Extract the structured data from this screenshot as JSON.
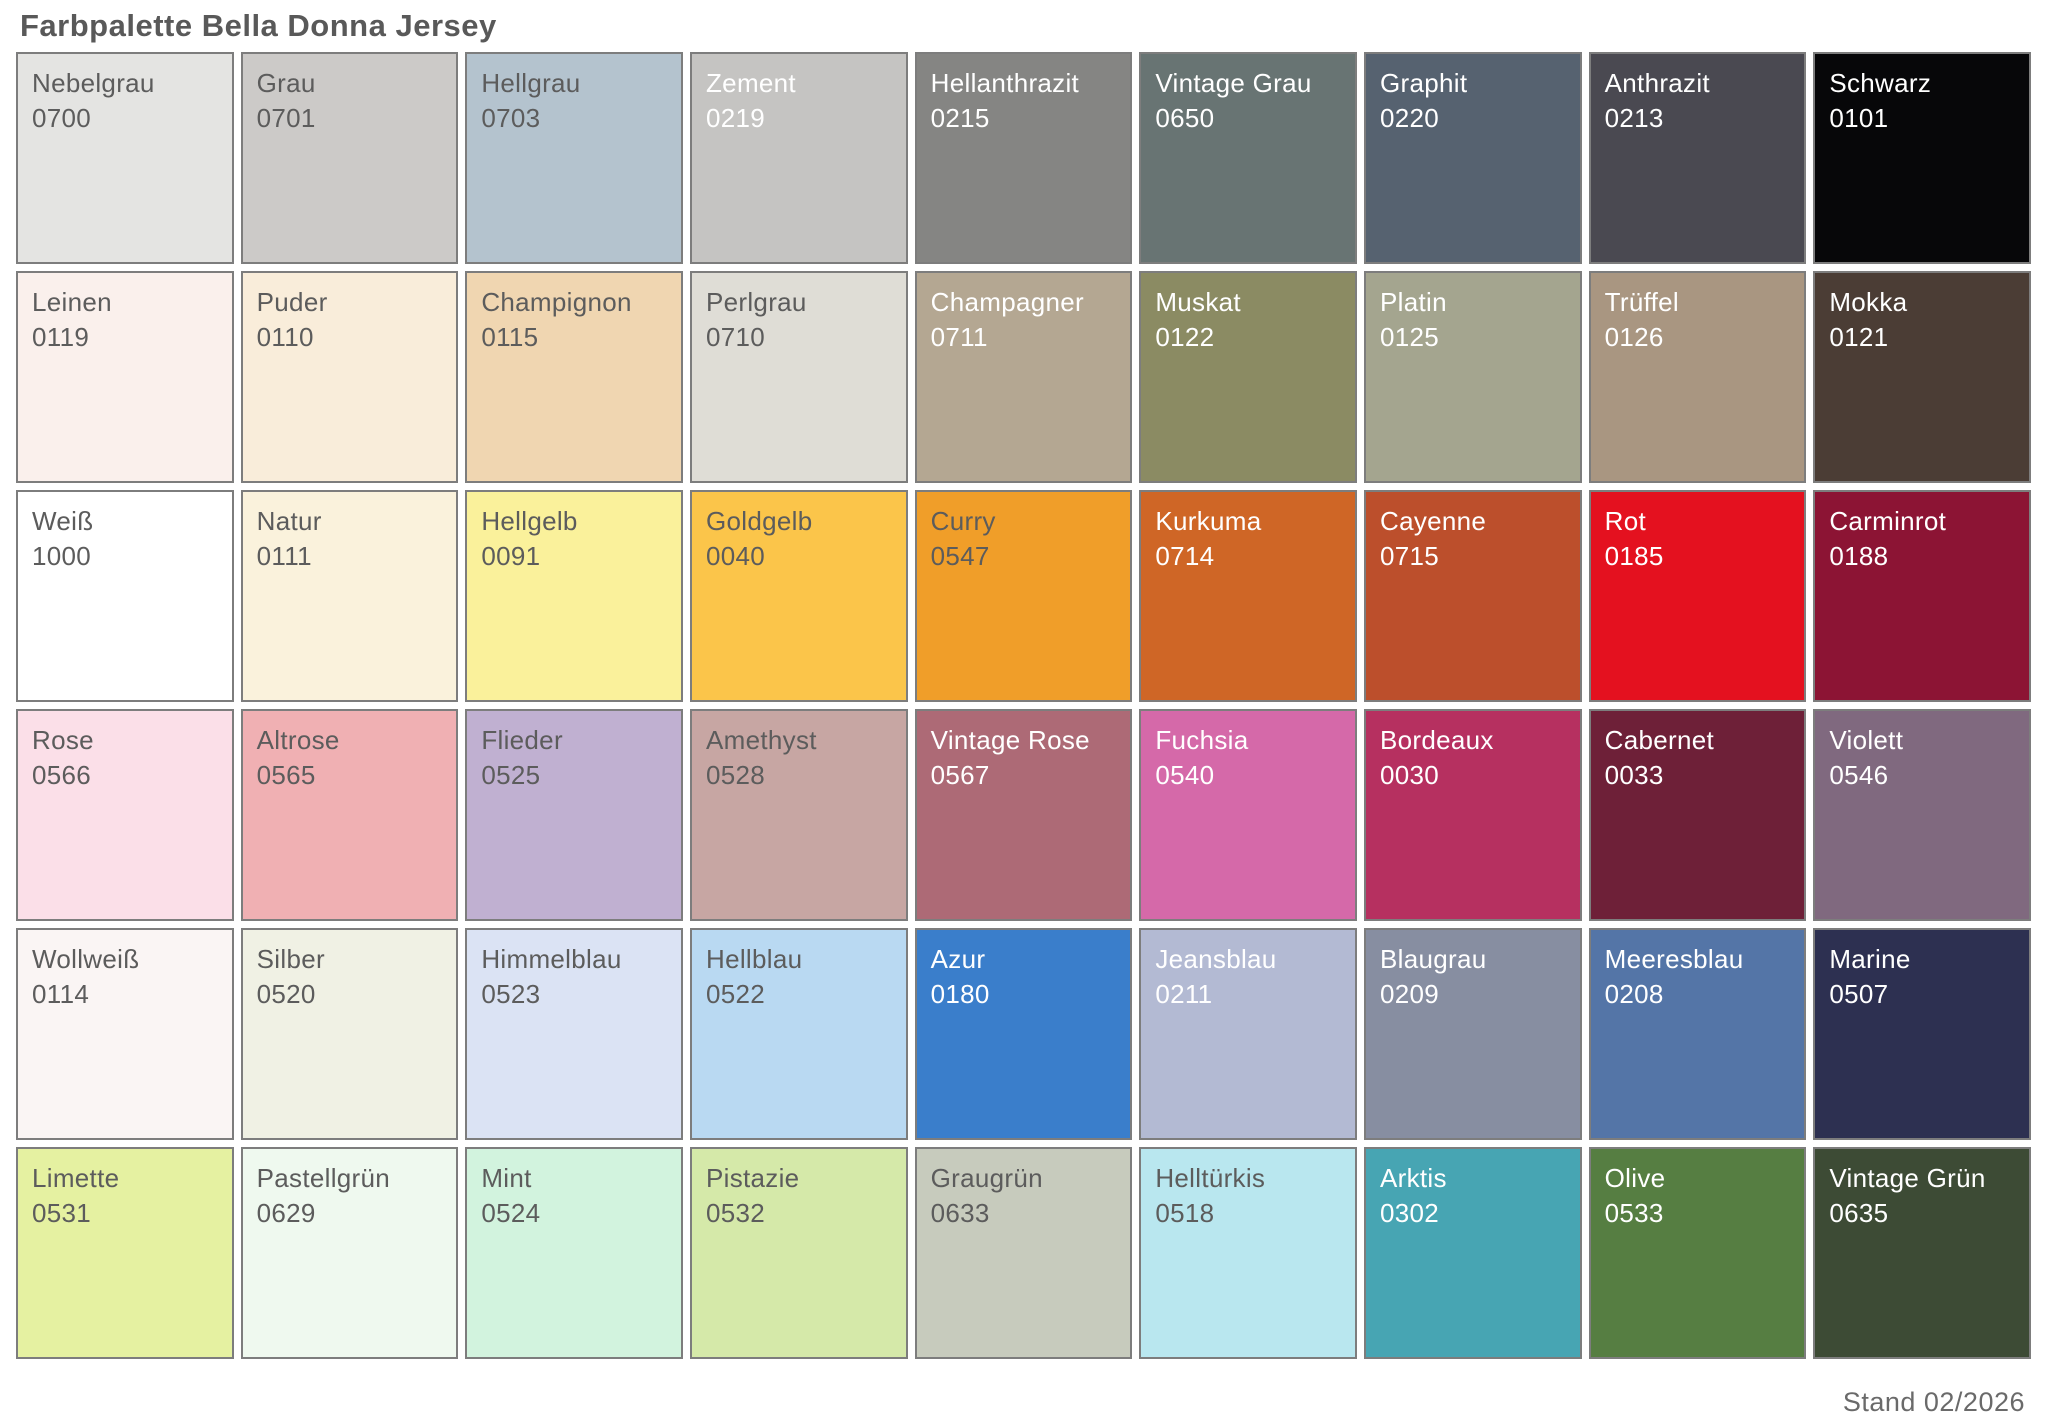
{
  "page": {
    "title": "Farbpalette Bella Donna Jersey",
    "footer": "Stand 02/2026"
  },
  "text_colors": {
    "dark": "#5c5c5c",
    "light": "#ffffff"
  },
  "palette": {
    "rows": [
      [
        {
          "name": "Nebelgrau",
          "code": "0700",
          "color": "#e4e4e2",
          "text": "dark"
        },
        {
          "name": "Grau",
          "code": "0701",
          "color": "#cccac8",
          "text": "dark"
        },
        {
          "name": "Hellgrau",
          "code": "0703",
          "color": "#b4c3ce",
          "text": "dark"
        },
        {
          "name": "Zement",
          "code": "0219",
          "color": "#c5c4c2",
          "text": "light"
        },
        {
          "name": "Hellanthrazit",
          "code": "0215",
          "color": "#858583",
          "text": "light"
        },
        {
          "name": "Vintage Grau",
          "code": "0650",
          "color": "#687473",
          "text": "light"
        },
        {
          "name": "Graphit",
          "code": "0220",
          "color": "#566270",
          "text": "light"
        },
        {
          "name": "Anthrazit",
          "code": "0213",
          "color": "#4a4951",
          "text": "light"
        },
        {
          "name": "Schwarz",
          "code": "0101",
          "color": "#070709",
          "text": "light"
        }
      ],
      [
        {
          "name": "Leinen",
          "code": "0119",
          "color": "#faf0ec",
          "text": "dark"
        },
        {
          "name": "Puder",
          "code": "0110",
          "color": "#f9edda",
          "text": "dark"
        },
        {
          "name": "Champignon",
          "code": "0115",
          "color": "#f0d6b1",
          "text": "dark"
        },
        {
          "name": "Perlgrau",
          "code": "0710",
          "color": "#dfddd6",
          "text": "dark"
        },
        {
          "name": "Champagner",
          "code": "0711",
          "color": "#b4a792",
          "text": "light"
        },
        {
          "name": "Muskat",
          "code": "0122",
          "color": "#8b8b63",
          "text": "light"
        },
        {
          "name": "Platin",
          "code": "0125",
          "color": "#a4a58f",
          "text": "light"
        },
        {
          "name": "Trüffel",
          "code": "0126",
          "color": "#a99681",
          "text": "light"
        },
        {
          "name": "Mokka",
          "code": "0121",
          "color": "#4b3d35",
          "text": "light"
        }
      ],
      [
        {
          "name": "Weiß",
          "code": "1000",
          "color": "#ffffff",
          "text": "dark"
        },
        {
          "name": "Natur",
          "code": "0111",
          "color": "#faf2dc",
          "text": "dark"
        },
        {
          "name": "Hellgelb",
          "code": "0091",
          "color": "#faf19b",
          "text": "dark"
        },
        {
          "name": "Goldgelb",
          "code": "0040",
          "color": "#fbc54a",
          "text": "dark"
        },
        {
          "name": "Curry",
          "code": "0547",
          "color": "#f09e29",
          "text": "dark"
        },
        {
          "name": "Kurkuma",
          "code": "0714",
          "color": "#cf6626",
          "text": "light"
        },
        {
          "name": "Cayenne",
          "code": "0715",
          "color": "#bc4f2c",
          "text": "light"
        },
        {
          "name": "Rot",
          "code": "0185",
          "color": "#e4111f",
          "text": "light"
        },
        {
          "name": "Carminrot",
          "code": "0188",
          "color": "#8c1434",
          "text": "light"
        }
      ],
      [
        {
          "name": "Rose",
          "code": "0566",
          "color": "#fbdfe8",
          "text": "dark"
        },
        {
          "name": "Altrose",
          "code": "0565",
          "color": "#f0b0b3",
          "text": "dark"
        },
        {
          "name": "Flieder",
          "code": "0525",
          "color": "#c0b0d1",
          "text": "dark"
        },
        {
          "name": "Amethyst",
          "code": "0528",
          "color": "#c7a6a3",
          "text": "dark"
        },
        {
          "name": "Vintage Rose",
          "code": "0567",
          "color": "#ad6a76",
          "text": "light"
        },
        {
          "name": "Fuchsia",
          "code": "0540",
          "color": "#d569a9",
          "text": "light"
        },
        {
          "name": "Bordeaux",
          "code": "0030",
          "color": "#b63060",
          "text": "light"
        },
        {
          "name": "Cabernet",
          "code": "0033",
          "color": "#6e2038",
          "text": "light"
        },
        {
          "name": "Violett",
          "code": "0546",
          "color": "#80697f",
          "text": "light"
        }
      ],
      [
        {
          "name": "Wollweiß",
          "code": "0114",
          "color": "#faf5f4",
          "text": "dark"
        },
        {
          "name": "Silber",
          "code": "0520",
          "color": "#f0f1e4",
          "text": "dark"
        },
        {
          "name": "Himmelblau",
          "code": "0523",
          "color": "#dbe3f4",
          "text": "dark"
        },
        {
          "name": "Hellblau",
          "code": "0522",
          "color": "#b9d9f2",
          "text": "dark"
        },
        {
          "name": "Azur",
          "code": "0180",
          "color": "#3a7ecb",
          "text": "light"
        },
        {
          "name": "Jeansblau",
          "code": "0211",
          "color": "#b3bad3",
          "text": "light"
        },
        {
          "name": "Blaugrau",
          "code": "0209",
          "color": "#878ea1",
          "text": "light"
        },
        {
          "name": "Meeresblau",
          "code": "0208",
          "color": "#5475a7",
          "text": "light"
        },
        {
          "name": "Marine",
          "code": "0507",
          "color": "#2d3051",
          "text": "light"
        }
      ],
      [
        {
          "name": "Limette",
          "code": "0531",
          "color": "#e5f1a1",
          "text": "dark"
        },
        {
          "name": "Pastellgrün",
          "code": "0629",
          "color": "#eff9ef",
          "text": "dark"
        },
        {
          "name": "Mint",
          "code": "0524",
          "color": "#d2f3de",
          "text": "dark"
        },
        {
          "name": "Pistazie",
          "code": "0532",
          "color": "#d5e9a9",
          "text": "dark"
        },
        {
          "name": "Graugrün",
          "code": "0633",
          "color": "#c7cbbd",
          "text": "dark"
        },
        {
          "name": "Helltürkis",
          "code": "0518",
          "color": "#b9e7ef",
          "text": "dark"
        },
        {
          "name": "Arktis",
          "code": "0302",
          "color": "#47a5b3",
          "text": "light"
        },
        {
          "name": "Olive",
          "code": "0533",
          "color": "#567e42",
          "text": "light"
        },
        {
          "name": "Vintage Grün",
          "code": "0635",
          "color": "#3d4b35",
          "text": "light"
        }
      ]
    ]
  }
}
